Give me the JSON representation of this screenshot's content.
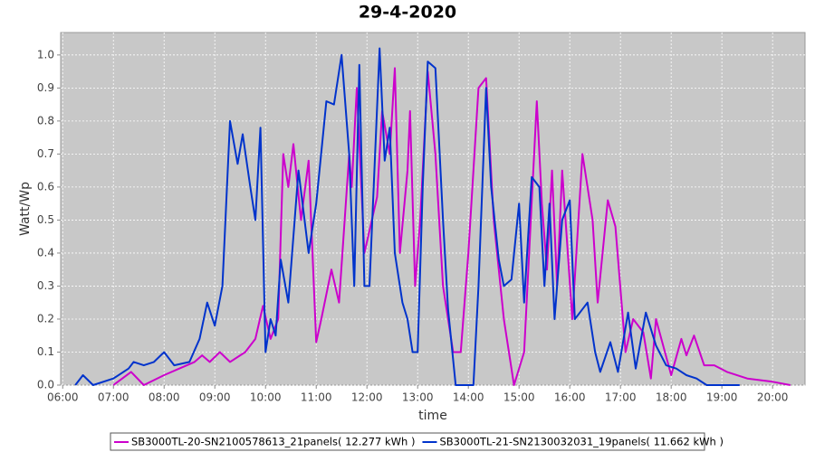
{
  "chart_data": {
    "type": "line",
    "title": "29-4-2020",
    "xlabel": "time",
    "ylabel": "Watt/Wp",
    "xlim": [
      5.96,
      20.64
    ],
    "ylim": [
      0,
      1.068
    ],
    "xticks": [
      {
        "value": 6,
        "label": "06:00"
      },
      {
        "value": 7,
        "label": "07:00"
      },
      {
        "value": 8,
        "label": "08:00"
      },
      {
        "value": 9,
        "label": "09:00"
      },
      {
        "value": 10,
        "label": "10:00"
      },
      {
        "value": 11,
        "label": "11:00"
      },
      {
        "value": 12,
        "label": "12:00"
      },
      {
        "value": 13,
        "label": "13:00"
      },
      {
        "value": 14,
        "label": "14:00"
      },
      {
        "value": 15,
        "label": "15:00"
      },
      {
        "value": 16,
        "label": "16:00"
      },
      {
        "value": 17,
        "label": "17:00"
      },
      {
        "value": 18,
        "label": "18:00"
      },
      {
        "value": 19,
        "label": "19:00"
      },
      {
        "value": 20,
        "label": "20:00"
      }
    ],
    "yticks": [
      {
        "value": 0,
        "label": "0.0"
      },
      0.1,
      0.2,
      0.3,
      0.4,
      0.5,
      0.6,
      0.7,
      0.8,
      0.9,
      {
        "value": 1,
        "label": "1.0"
      }
    ],
    "grid": true,
    "series": [
      {
        "name": "SB3000TL-20-SN2100578613_21panels( 12.277 kWh )",
        "color": "#cc00cc",
        "x": [
          7.0,
          7.35,
          7.6,
          8.0,
          8.3,
          8.6,
          8.75,
          8.9,
          9.1,
          9.3,
          9.6,
          9.8,
          9.95,
          10.1,
          10.25,
          10.35,
          10.45,
          10.55,
          10.7,
          10.85,
          11.0,
          11.1,
          11.3,
          11.45,
          11.65,
          11.7,
          11.8,
          11.95,
          12.2,
          12.3,
          12.45,
          12.55,
          12.65,
          12.8,
          12.85,
          12.95,
          13.05,
          13.2,
          13.35,
          13.5,
          13.7,
          13.85,
          14.0,
          14.2,
          14.35,
          14.5,
          14.7,
          14.9,
          15.1,
          15.35,
          15.45,
          15.55,
          15.65,
          15.75,
          15.85,
          16.05,
          16.25,
          16.45,
          16.55,
          16.75,
          16.9,
          17.1,
          17.25,
          17.45,
          17.6,
          17.7,
          18.0,
          18.2,
          18.3,
          18.45,
          18.65,
          18.85,
          19.1,
          19.5,
          20.0,
          20.35
        ],
        "values": [
          0,
          0.04,
          0,
          0.03,
          0.05,
          0.07,
          0.09,
          0.07,
          0.1,
          0.07,
          0.1,
          0.14,
          0.24,
          0.14,
          0.2,
          0.7,
          0.6,
          0.73,
          0.5,
          0.68,
          0.13,
          0.2,
          0.35,
          0.25,
          0.7,
          0.6,
          0.9,
          0.4,
          0.57,
          0.83,
          0.7,
          0.96,
          0.4,
          0.65,
          0.83,
          0.3,
          0.5,
          0.95,
          0.7,
          0.3,
          0.1,
          0.1,
          0.4,
          0.9,
          0.93,
          0.5,
          0.2,
          0,
          0.1,
          0.86,
          0.55,
          0.35,
          0.65,
          0.3,
          0.65,
          0.2,
          0.7,
          0.5,
          0.25,
          0.56,
          0.48,
          0.1,
          0.2,
          0.16,
          0.02,
          0.2,
          0.03,
          0.14,
          0.09,
          0.15,
          0.06,
          0.06,
          0.04,
          0.02,
          0.01,
          0
        ]
      },
      {
        "name": "SB3000TL-21-SN2130032031_19panels( 11.662 kWh )",
        "color": "#0033cc",
        "x": [
          6.25,
          6.4,
          6.6,
          7.0,
          7.3,
          7.4,
          7.6,
          7.8,
          8.0,
          8.2,
          8.5,
          8.7,
          8.85,
          9.0,
          9.15,
          9.3,
          9.45,
          9.55,
          9.7,
          9.8,
          9.9,
          10.0,
          10.1,
          10.2,
          10.3,
          10.45,
          10.65,
          10.85,
          11.0,
          11.2,
          11.35,
          11.5,
          11.65,
          11.75,
          11.85,
          11.95,
          12.05,
          12.25,
          12.35,
          12.45,
          12.55,
          12.7,
          12.8,
          12.9,
          13.0,
          13.1,
          13.2,
          13.35,
          13.5,
          13.6,
          13.75,
          14.1,
          14.2,
          14.35,
          14.45,
          14.6,
          14.7,
          14.85,
          15.0,
          15.1,
          15.25,
          15.4,
          15.5,
          15.6,
          15.7,
          15.85,
          16.0,
          16.1,
          16.35,
          16.5,
          16.6,
          16.8,
          16.95,
          17.15,
          17.3,
          17.5,
          17.7,
          17.9,
          18.1,
          18.3,
          18.5,
          18.7,
          19.35
        ],
        "values": [
          0,
          0.03,
          0,
          0.02,
          0.05,
          0.07,
          0.06,
          0.07,
          0.1,
          0.06,
          0.07,
          0.14,
          0.25,
          0.18,
          0.3,
          0.8,
          0.67,
          0.76,
          0.6,
          0.5,
          0.78,
          0.1,
          0.2,
          0.15,
          0.38,
          0.25,
          0.65,
          0.4,
          0.55,
          0.86,
          0.85,
          1.0,
          0.7,
          0.3,
          0.97,
          0.3,
          0.3,
          1.02,
          0.68,
          0.78,
          0.4,
          0.25,
          0.2,
          0.1,
          0.1,
          0.6,
          0.98,
          0.96,
          0.5,
          0.23,
          0,
          0,
          0.3,
          0.9,
          0.6,
          0.38,
          0.3,
          0.32,
          0.55,
          0.25,
          0.63,
          0.6,
          0.3,
          0.55,
          0.2,
          0.5,
          0.56,
          0.2,
          0.25,
          0.1,
          0.04,
          0.13,
          0.04,
          0.22,
          0.05,
          0.22,
          0.12,
          0.06,
          0.05,
          0.03,
          0.02,
          0,
          0
        ]
      }
    ]
  }
}
